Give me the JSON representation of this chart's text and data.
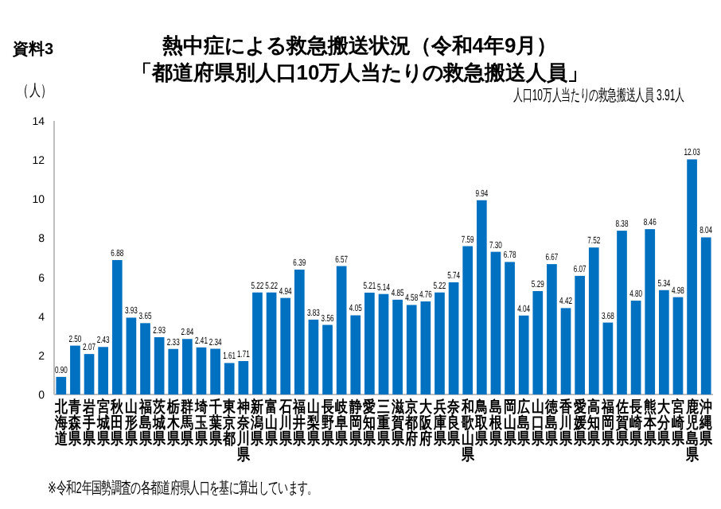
{
  "chart_data": {
    "type": "bar",
    "title": "熱中症による救急搬送状況（令和4年9月）",
    "subtitle": "「都道府県別人口10万人当たりの救急搬送人員」",
    "ylabel": "（人）",
    "annotations": [
      "資料3",
      "人口10万人当たりの救急搬送人員 3.91人",
      "※令和2年国勢調査の各都道府県人口を基に算出しています。"
    ],
    "categories": [
      "北海道",
      "青森県",
      "岩手県",
      "宮城県",
      "秋田県",
      "山形県",
      "福島県",
      "茨城県",
      "栃木県",
      "群馬県",
      "埼玉県",
      "千葉県",
      "東京都",
      "神奈川県",
      "新潟県",
      "富山県",
      "石川県",
      "福井県",
      "山梨県",
      "長野県",
      "岐阜県",
      "静岡県",
      "愛知県",
      "三重県",
      "滋賀県",
      "京都府",
      "大阪府",
      "兵庫県",
      "奈良県",
      "和歌山県",
      "鳥取県",
      "島根県",
      "岡山県",
      "広島県",
      "山口県",
      "徳島県",
      "香川県",
      "愛媛県",
      "高知県",
      "福岡県",
      "佐賀県",
      "長崎県",
      "熊本県",
      "大分県",
      "宮崎県",
      "鹿児島県",
      "沖縄県"
    ],
    "values": [
      0.9,
      2.5,
      2.07,
      2.43,
      6.88,
      3.93,
      3.65,
      2.93,
      2.33,
      2.84,
      2.41,
      2.34,
      1.61,
      1.71,
      5.22,
      5.22,
      4.94,
      6.39,
      3.83,
      3.56,
      6.57,
      4.05,
      5.21,
      5.14,
      4.85,
      4.58,
      4.76,
      5.22,
      5.74,
      7.59,
      9.94,
      7.3,
      6.78,
      4.04,
      5.29,
      6.67,
      4.42,
      6.07,
      7.52,
      3.68,
      8.38,
      4.8,
      8.46,
      5.34,
      4.98,
      12.03,
      8.04
    ],
    "value_labels": [
      "0.90",
      "2.50",
      "2.07",
      "2.43",
      "6.88",
      "3.93",
      "3.65",
      "2.93",
      "2.33",
      "2.84",
      "2.41",
      "2.34",
      "1.61",
      "1.71",
      "5.22",
      "5.22",
      "4.94",
      "6.39",
      "3.83",
      "3.56",
      "6.57",
      "4.05",
      "5.21",
      "5.14",
      "4.85",
      "4.58",
      "4.76",
      "5.22",
      "5.74",
      "7.59",
      "9.94",
      "7.30",
      "6.78",
      "4.04",
      "5.29",
      "6.67",
      "4.42",
      "6.07",
      "7.52",
      "3.68",
      "8.38",
      "4.80",
      "8.46",
      "5.34",
      "4.98",
      "12.03",
      "8.04"
    ],
    "color": "#0070c0",
    "ylim": [
      0,
      14
    ],
    "yticks": [
      0,
      2,
      4,
      6,
      8,
      10,
      12,
      14
    ],
    "grid": false
  }
}
